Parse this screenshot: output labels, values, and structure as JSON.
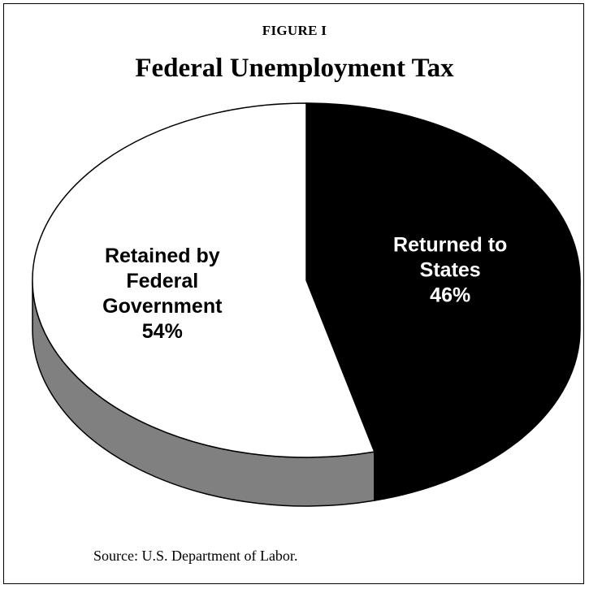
{
  "figure_label": "FIGURE I",
  "chart_data": {
    "type": "pie",
    "title": "Federal Unemployment Tax",
    "slices": [
      {
        "label": [
          "Returned to",
          "States",
          "46%"
        ],
        "value": 46,
        "color": "#000000",
        "text_color": "#ffffff",
        "side_color": "#000000"
      },
      {
        "label": [
          "Retained by",
          "Federal",
          "Government",
          "54%"
        ],
        "value": 54,
        "color": "#ffffff",
        "text_color": "#000000",
        "side_color": "#808080"
      }
    ],
    "start_angle": "12 o'clock",
    "direction": "clockwise",
    "style": "3d"
  },
  "source": "Source:  U.S. Department of Labor."
}
